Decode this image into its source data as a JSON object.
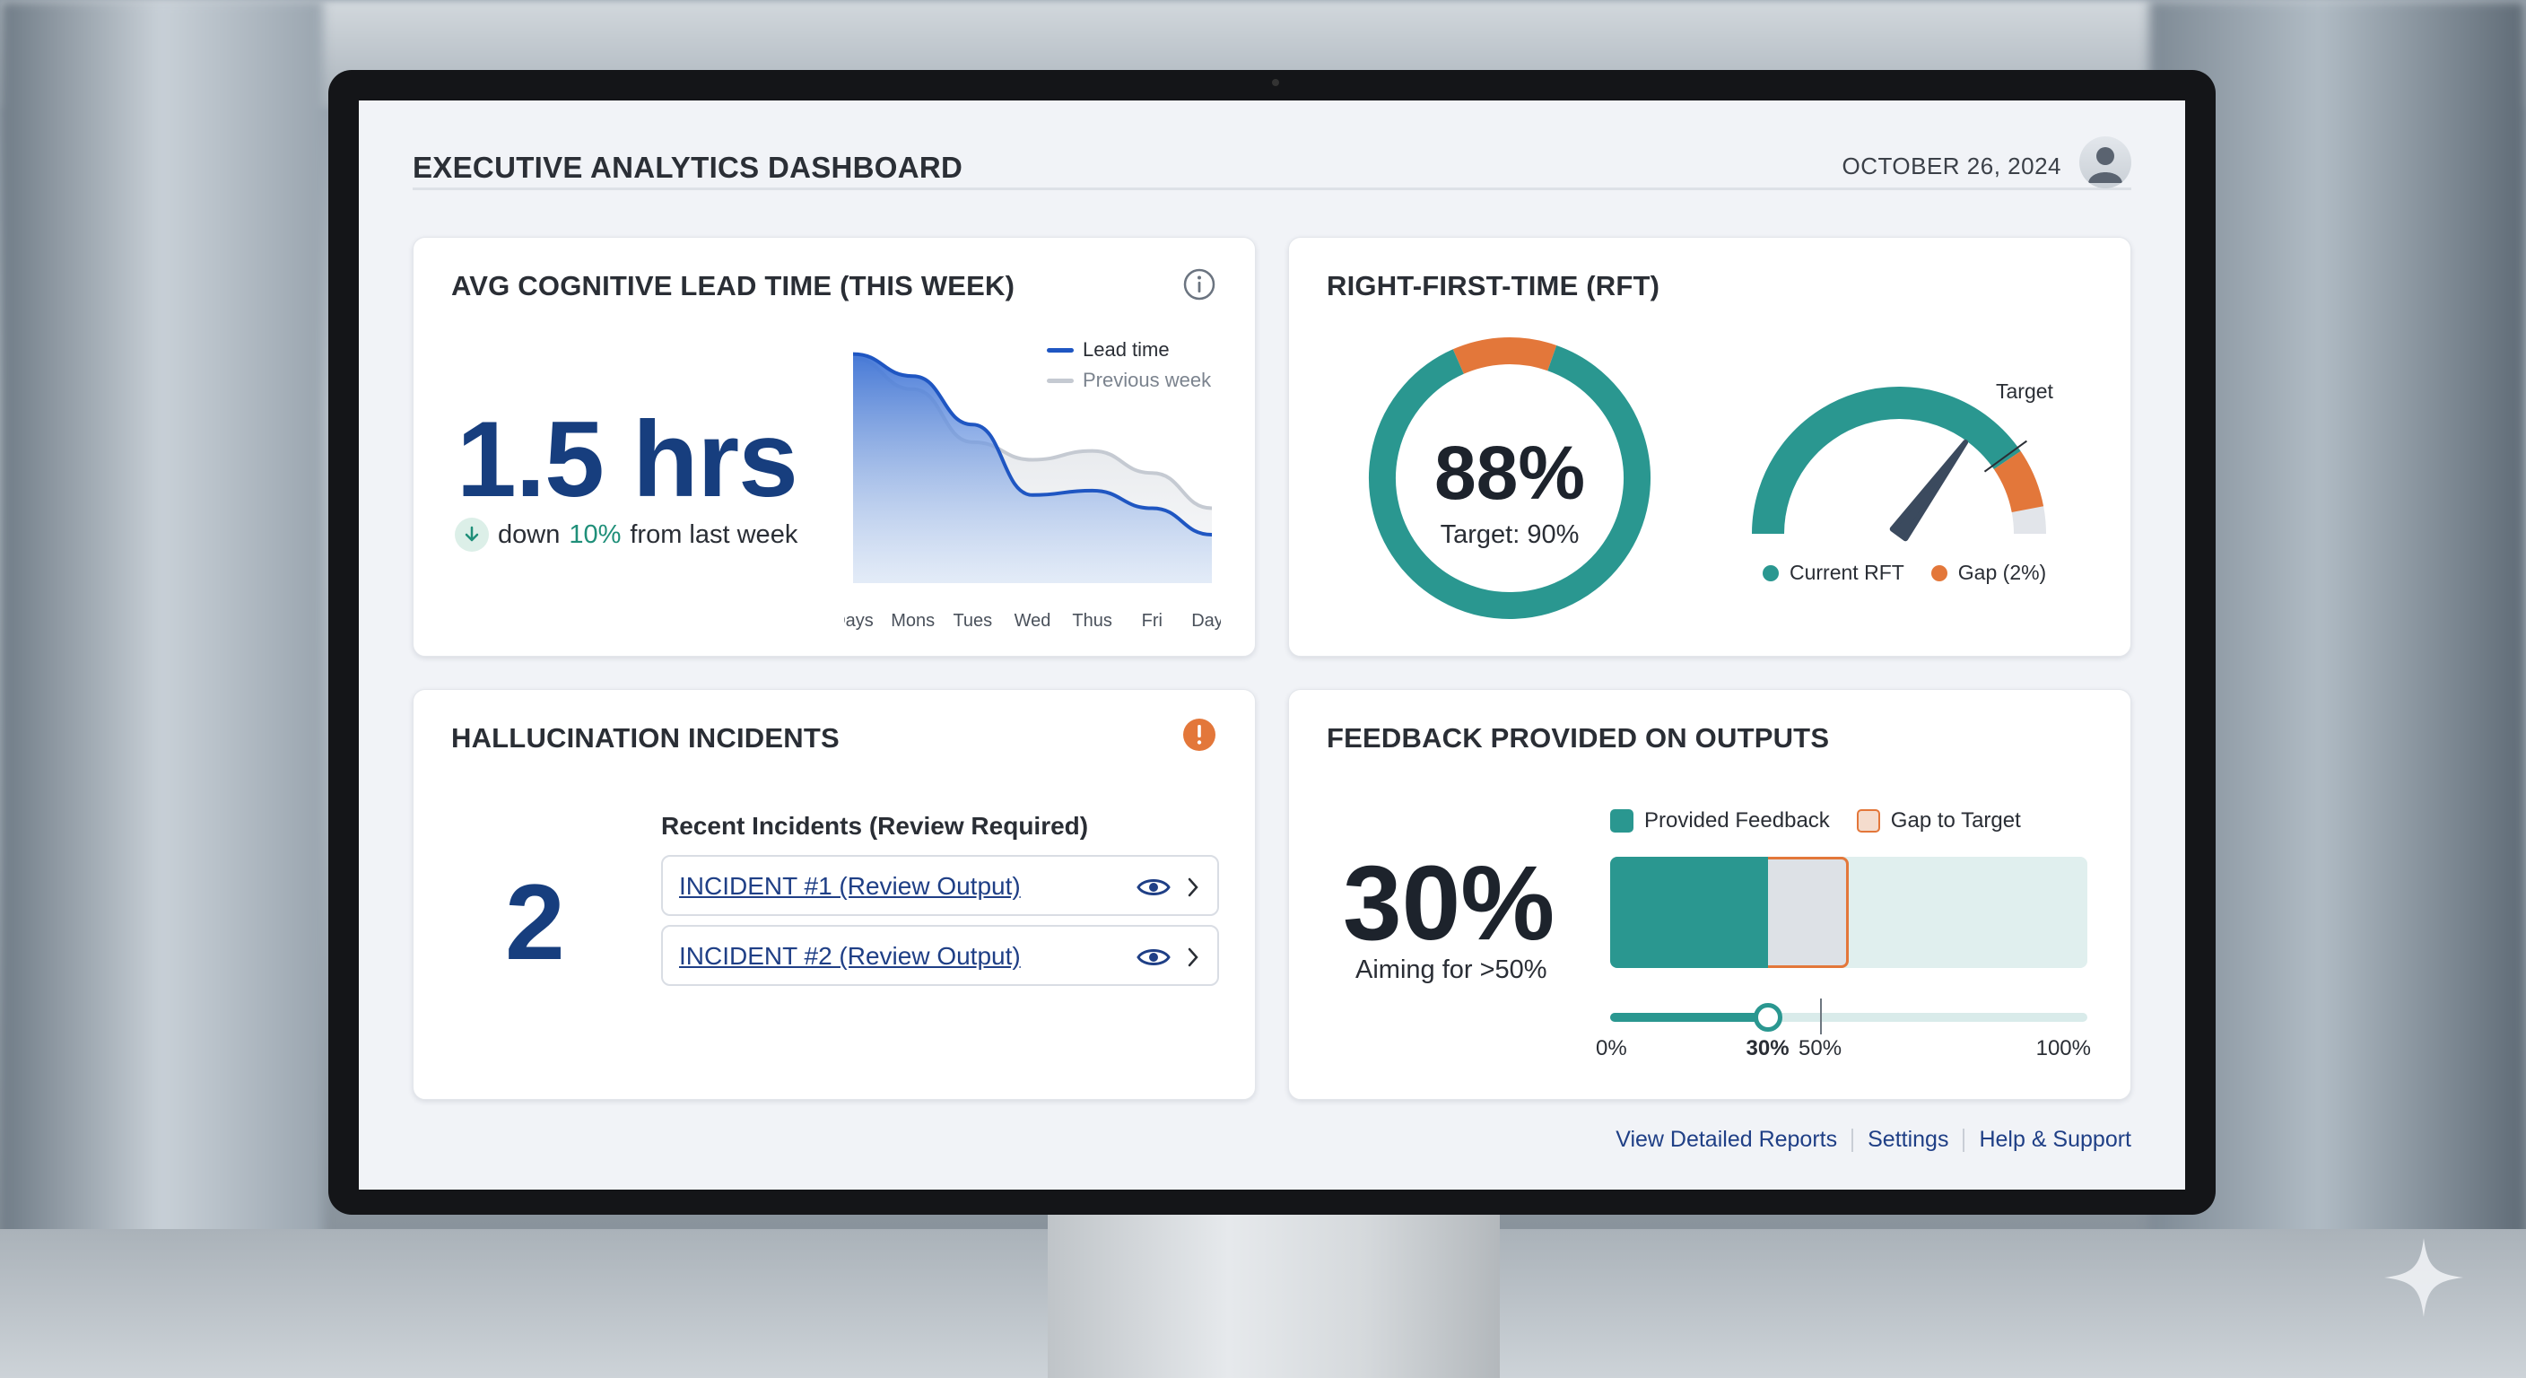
{
  "header": {
    "title": "EXECUTIVE ANALYTICS DASHBOARD",
    "date": "OCTOBER 26, 2024"
  },
  "lead_time": {
    "title": "AVG COGNITIVE LEAD TIME (THIS WEEK)",
    "value": "1.5 hrs",
    "delta_prefix": "down",
    "delta_pct": "10%",
    "delta_suffix": "from last week",
    "legend": [
      "Lead time",
      "Previous week"
    ],
    "icon": "info-icon"
  },
  "rft": {
    "title": "RIGHT-FIRST-TIME (RFT)",
    "value": "88%",
    "target_label": "Target: 90%",
    "gauge_target_label": "Target",
    "legend_current": "Current RFT",
    "legend_gap": "Gap (2%)"
  },
  "hallucination": {
    "title": "HALLUCINATION INCIDENTS",
    "count": "2",
    "list_heading": "Recent Incidents (Review Required)",
    "incidents": [
      "INCIDENT #1 (Review Output)",
      "INCIDENT #2 (Review Output)"
    ],
    "icon": "alert-icon"
  },
  "feedback": {
    "title": "FEEDBACK PROVIDED ON OUTPUTS",
    "value": "30%",
    "sub": "Aiming for >50%",
    "legend_provided": "Provided Feedback",
    "legend_gap": "Gap to Target",
    "ticks": [
      "0%",
      "30%",
      "50%",
      "100%"
    ]
  },
  "footer": {
    "links": [
      "View Detailed Reports",
      "Settings",
      "Help & Support"
    ]
  },
  "colors": {
    "navy": "#173e7e",
    "teal": "#2a9790",
    "orange": "#e3773a",
    "blue_line": "#1f56c2",
    "gray_line": "#c5cad2"
  },
  "chart_data": [
    {
      "type": "area",
      "x": [
        "Days",
        "Mons",
        "Tues",
        "Wed",
        "Thus",
        "Fri",
        "Days"
      ],
      "series": [
        {
          "name": "Lead time",
          "values": [
            2.6,
            2.35,
            1.8,
            1.0,
            1.05,
            0.85,
            0.55
          ]
        },
        {
          "name": "Previous week",
          "values": [
            2.55,
            2.2,
            1.6,
            1.4,
            1.5,
            1.25,
            0.85
          ]
        }
      ],
      "ylim": [
        0,
        2.8
      ],
      "legend": "top-right"
    },
    {
      "type": "pie",
      "categories": [
        "Current RFT",
        "Gap"
      ],
      "values": [
        88,
        12
      ],
      "center_label": "88%",
      "target": 90
    },
    {
      "type": "gauge",
      "value": 88,
      "target": 90,
      "gap": 2,
      "range": [
        0,
        100
      ]
    },
    {
      "type": "bar",
      "categories": [
        "Provided Feedback",
        "Gap to Target"
      ],
      "values": [
        30,
        20
      ],
      "target": 50,
      "xlim": [
        0,
        100
      ]
    }
  ]
}
